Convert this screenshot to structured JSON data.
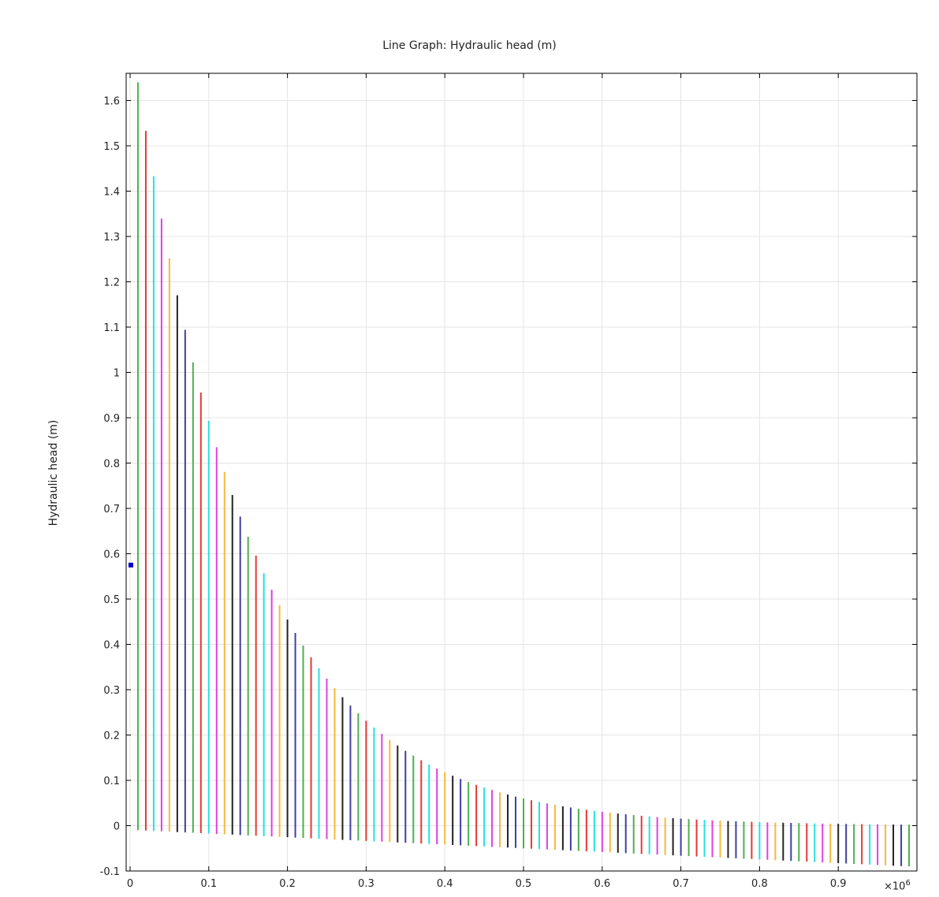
{
  "chart_data": {
    "type": "line",
    "title": "Line Graph: Hydraulic head (m)",
    "xlabel": "",
    "ylabel": "Hydraulic head (m)",
    "x_multiplier_label": "×10",
    "x_multiplier_exponent": "6",
    "xlim": [
      -0.005,
      1.0
    ],
    "ylim": [
      -0.1,
      1.66
    ],
    "x_ticks": [
      "0",
      "0.1",
      "0.2",
      "0.3",
      "0.4",
      "0.5",
      "0.6",
      "0.7",
      "0.8",
      "0.9"
    ],
    "y_ticks": [
      "-0.1",
      "0",
      "0.1",
      "0.2",
      "0.3",
      "0.4",
      "0.5",
      "0.6",
      "0.7",
      "0.8",
      "0.9",
      "1",
      "1.1",
      "1.2",
      "1.3",
      "1.4",
      "1.5",
      "1.6"
    ],
    "grid": true,
    "legend": "none",
    "series_palette": [
      "#4caf50",
      "#e53935",
      "#26e0e0",
      "#e040e0",
      "#f5b93a",
      "#222222",
      "#3f3fa0"
    ],
    "segments": {
      "x_start": 0.01,
      "x_step": 0.01,
      "count": 99,
      "peak_top": 1.64,
      "decay_per_step": 0.0675,
      "top_floor": -0.002,
      "bottom_start": -0.01,
      "bottom_end": -0.09
    },
    "marker": {
      "x": 0.001,
      "y": 0.575,
      "color": "#0000cc"
    }
  }
}
